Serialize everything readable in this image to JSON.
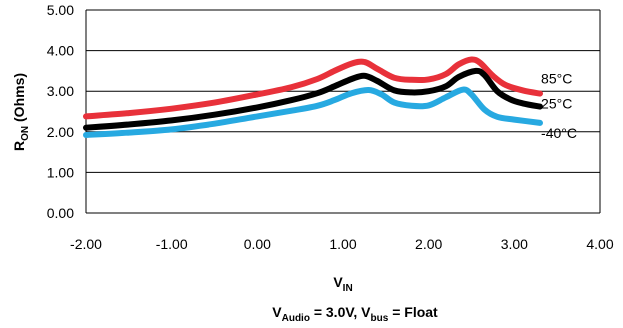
{
  "chart_data": {
    "type": "line",
    "xlabel": {
      "main": "V",
      "sub": "IN"
    },
    "ylabel": {
      "main": "R",
      "sub": "ON",
      "rest": " (Ohms)"
    },
    "caption": {
      "part1": "V",
      "sub1": "Audio",
      "part2": " = 3.0V, V",
      "sub2": "bus",
      "part3": " = Float"
    },
    "xlim": [
      -2,
      4
    ],
    "ylim": [
      0,
      5
    ],
    "x_ticks": [
      "-2.00",
      "-1.00",
      "0.00",
      "1.00",
      "2.00",
      "3.00",
      "4.00"
    ],
    "y_ticks": [
      "0.00",
      "1.00",
      "2.00",
      "3.00",
      "4.00",
      "5.00"
    ],
    "grid": "horizontal",
    "series": [
      {
        "name": "85°C",
        "color": "#e8313a",
        "x": [
          -2.0,
          -1.5,
          -1.0,
          -0.5,
          0.0,
          0.4,
          0.7,
          0.9,
          1.1,
          1.25,
          1.4,
          1.6,
          1.8,
          2.0,
          2.2,
          2.35,
          2.5,
          2.6,
          2.75,
          2.9,
          3.1,
          3.3
        ],
        "y": [
          2.38,
          2.46,
          2.57,
          2.72,
          2.92,
          3.1,
          3.3,
          3.5,
          3.68,
          3.72,
          3.55,
          3.33,
          3.28,
          3.29,
          3.42,
          3.66,
          3.78,
          3.7,
          3.38,
          3.15,
          3.02,
          2.94
        ]
      },
      {
        "name": "25°C",
        "color": "#000000",
        "x": [
          -2.0,
          -1.5,
          -1.0,
          -0.5,
          0.0,
          0.4,
          0.7,
          0.9,
          1.1,
          1.25,
          1.4,
          1.6,
          1.8,
          2.0,
          2.2,
          2.35,
          2.55,
          2.65,
          2.8,
          2.95,
          3.1,
          3.3
        ],
        "y": [
          2.1,
          2.18,
          2.28,
          2.42,
          2.6,
          2.78,
          2.95,
          3.12,
          3.3,
          3.38,
          3.25,
          3.02,
          2.97,
          3.0,
          3.12,
          3.35,
          3.5,
          3.4,
          3.0,
          2.8,
          2.7,
          2.62
        ]
      },
      {
        "name": "-40°C",
        "color": "#27a9e1",
        "x": [
          -2.0,
          -1.5,
          -1.0,
          -0.5,
          0.0,
          0.4,
          0.7,
          0.9,
          1.1,
          1.3,
          1.45,
          1.6,
          1.8,
          2.0,
          2.2,
          2.4,
          2.5,
          2.65,
          2.8,
          3.0,
          3.3
        ],
        "y": [
          1.92,
          1.98,
          2.06,
          2.2,
          2.38,
          2.52,
          2.64,
          2.78,
          2.95,
          3.03,
          2.92,
          2.72,
          2.64,
          2.65,
          2.85,
          3.04,
          2.92,
          2.55,
          2.37,
          2.3,
          2.22
        ]
      }
    ]
  }
}
